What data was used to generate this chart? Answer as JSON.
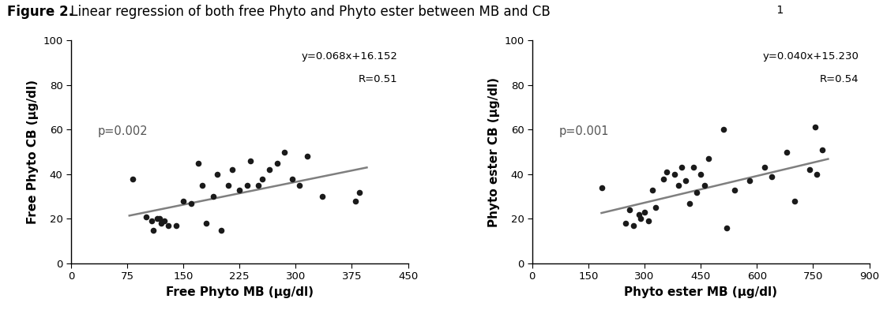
{
  "title_bold": "Figure 2.",
  "title_normal": " Linear regression of both free Phyto and Phyto ester between MB and CB",
  "title_super": " 1",
  "plot1": {
    "xlabel": "Free Phyto MB (μg/dl)",
    "ylabel": "Free Phyto CB (μg/dl)",
    "xlim": [
      0,
      450
    ],
    "ylim": [
      0,
      100
    ],
    "xticks": [
      0,
      75,
      150,
      225,
      300,
      375,
      450
    ],
    "yticks": [
      0,
      20,
      40,
      60,
      80,
      100
    ],
    "equation": "y=0.068x+16.152",
    "R": "R=0.51",
    "p_value": "p=0.002",
    "slope": 0.068,
    "intercept": 16.152,
    "line_x_start": 78,
    "line_x_end": 395,
    "scatter_x": [
      82,
      100,
      108,
      110,
      115,
      118,
      120,
      125,
      130,
      140,
      150,
      160,
      170,
      175,
      180,
      190,
      195,
      200,
      210,
      215,
      225,
      235,
      240,
      250,
      255,
      265,
      275,
      285,
      295,
      305,
      315,
      335,
      380,
      385
    ],
    "scatter_y": [
      38,
      21,
      19,
      15,
      20,
      20,
      18,
      19,
      17,
      17,
      28,
      27,
      45,
      35,
      18,
      30,
      40,
      15,
      35,
      42,
      33,
      35,
      46,
      35,
      38,
      42,
      45,
      50,
      38,
      35,
      48,
      30,
      28,
      32
    ]
  },
  "plot2": {
    "xlabel": "Phyto ester MB (μg/dl)",
    "ylabel": "Phyto ester CB (μg/dl)",
    "xlim": [
      0,
      900
    ],
    "ylim": [
      0,
      100
    ],
    "xticks": [
      0,
      150,
      300,
      450,
      600,
      750,
      900
    ],
    "yticks": [
      0,
      20,
      40,
      60,
      80,
      100
    ],
    "equation": "y=0.040x+15.230",
    "R": "R=0.54",
    "p_value": "p=0.001",
    "slope": 0.04,
    "intercept": 15.23,
    "line_x_start": 185,
    "line_x_end": 790,
    "scatter_x": [
      185,
      250,
      260,
      270,
      285,
      290,
      300,
      310,
      320,
      330,
      350,
      360,
      380,
      390,
      400,
      410,
      420,
      430,
      440,
      450,
      460,
      470,
      510,
      520,
      540,
      580,
      620,
      640,
      680,
      700,
      740,
      755,
      760,
      775
    ],
    "scatter_y": [
      34,
      18,
      24,
      17,
      22,
      20,
      23,
      19,
      33,
      25,
      38,
      41,
      40,
      35,
      43,
      37,
      27,
      43,
      32,
      40,
      35,
      47,
      60,
      16,
      33,
      37,
      43,
      39,
      50,
      28,
      42,
      61,
      40,
      51
    ]
  },
  "dot_color": "#1a1a1a",
  "line_color": "#7f7f7f",
  "dot_size": 30,
  "line_width": 1.8,
  "background_color": "#ffffff",
  "eq_fontsize": 9.5,
  "p_fontsize": 10.5,
  "label_fontsize": 11,
  "tick_fontsize": 9.5,
  "title_fontsize": 12
}
